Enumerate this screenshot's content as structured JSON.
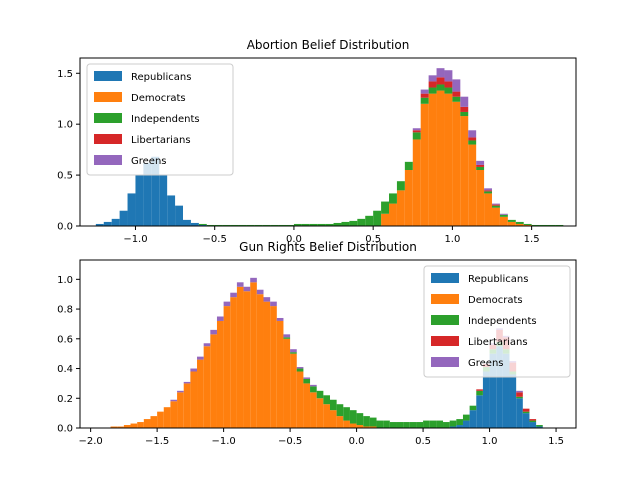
{
  "colors": {
    "Republicans": "#1f77b4",
    "Democrats": "#ff7f0e",
    "Independents": "#2ca02c",
    "Libertarians": "#d62728",
    "Greens": "#9467bd"
  },
  "chart_data": [
    {
      "type": "bar",
      "stacked": true,
      "title": "Abortion Belief Distribution",
      "xlabel": "",
      "ylabel": "",
      "xlim": [
        -1.35,
        1.78
      ],
      "ylim": [
        0,
        1.65
      ],
      "xticks": [
        -1.0,
        -0.5,
        0.0,
        0.5,
        1.0,
        1.5
      ],
      "xtick_labels": [
        "−1.0",
        "−0.5",
        "0.0",
        "0.5",
        "1.0",
        "1.5"
      ],
      "yticks": [
        0,
        0.5,
        1.0,
        1.5
      ],
      "ytick_labels": [
        "0.0",
        "0.5",
        "1.0",
        "1.5"
      ],
      "legend": {
        "position": "top-left",
        "entries": [
          "Republicans",
          "Democrats",
          "Independents",
          "Libertarians",
          "Greens"
        ]
      },
      "bins": {
        "start": -1.25,
        "width": 0.05
      },
      "series": [
        {
          "name": "Republicans",
          "values": [
            0.02,
            0.04,
            0.07,
            0.15,
            0.32,
            0.5,
            0.62,
            0.68,
            0.5,
            0.3,
            0.2,
            0.06,
            0.03,
            0.01,
            0,
            0,
            0,
            0,
            0,
            0,
            0,
            0,
            0,
            0,
            0,
            0,
            0,
            0,
            0,
            0,
            0,
            0,
            0,
            0,
            0,
            0,
            0,
            0,
            0,
            0,
            0,
            0,
            0,
            0,
            0,
            0,
            0,
            0,
            0,
            0,
            0,
            0,
            0,
            0,
            0,
            0,
            0,
            0,
            0
          ]
        },
        {
          "name": "Democrats",
          "values": [
            0,
            0,
            0,
            0,
            0,
            0,
            0,
            0,
            0,
            0,
            0,
            0,
            0,
            0,
            0,
            0,
            0,
            0,
            0,
            0,
            0,
            0,
            0,
            0,
            0,
            0,
            0,
            0,
            0,
            0,
            0,
            0,
            0,
            0,
            0,
            0,
            0.12,
            0.22,
            0.35,
            0.55,
            0.85,
            1.2,
            1.3,
            1.33,
            1.3,
            1.22,
            1.08,
            0.8,
            0.55,
            0.32,
            0.18,
            0.09,
            0.04,
            0.02,
            0.01,
            0,
            0,
            0,
            0
          ]
        },
        {
          "name": "Independents",
          "values": [
            0,
            0,
            0,
            0,
            0,
            0,
            0,
            0,
            0,
            0,
            0,
            0,
            0,
            0.01,
            0.01,
            0.01,
            0.01,
            0.01,
            0.01,
            0.01,
            0.01,
            0.01,
            0.01,
            0.01,
            0.01,
            0.02,
            0.02,
            0.02,
            0.02,
            0.02,
            0.03,
            0.04,
            0.05,
            0.07,
            0.1,
            0.15,
            0.12,
            0.1,
            0.09,
            0.08,
            0.07,
            0.06,
            0.06,
            0.06,
            0.06,
            0.05,
            0.04,
            0.04,
            0.03,
            0.02,
            0.02,
            0.02,
            0.02,
            0.02,
            0.01,
            0.01,
            0.01,
            0.01,
            0.01
          ]
        },
        {
          "name": "Libertarians",
          "values": [
            0,
            0,
            0,
            0,
            0,
            0,
            0,
            0,
            0,
            0,
            0,
            0,
            0,
            0,
            0,
            0,
            0,
            0,
            0,
            0,
            0,
            0,
            0,
            0,
            0,
            0,
            0,
            0,
            0,
            0,
            0,
            0,
            0,
            0,
            0,
            0,
            0,
            0,
            0,
            0,
            0.02,
            0.04,
            0.06,
            0.07,
            0.06,
            0.05,
            0.05,
            0.03,
            0.02,
            0.01,
            0.01,
            0,
            0,
            0,
            0,
            0,
            0,
            0,
            0
          ]
        },
        {
          "name": "Greens",
          "values": [
            0,
            0,
            0,
            0,
            0,
            0,
            0,
            0,
            0,
            0,
            0,
            0,
            0,
            0,
            0,
            0,
            0,
            0,
            0,
            0,
            0,
            0,
            0,
            0,
            0,
            0,
            0,
            0,
            0,
            0,
            0,
            0,
            0,
            0,
            0,
            0,
            0,
            0,
            0,
            0,
            0.02,
            0.04,
            0.06,
            0.09,
            0.11,
            0.12,
            0.1,
            0.07,
            0.04,
            0.02,
            0.01,
            0.01,
            0,
            0,
            0,
            0,
            0,
            0,
            0
          ]
        }
      ]
    },
    {
      "type": "bar",
      "stacked": true,
      "title": "Gun Rights Belief Distribution",
      "xlabel": "",
      "ylabel": "",
      "xlim": [
        -2.08,
        1.65
      ],
      "ylim": [
        0,
        1.13
      ],
      "xticks": [
        -2.0,
        -1.5,
        -1.0,
        -0.5,
        0.0,
        0.5,
        1.0,
        1.5
      ],
      "xtick_labels": [
        "−2.0",
        "−1.5",
        "−1.0",
        "−0.5",
        "0.0",
        "0.5",
        "1.0",
        "1.5"
      ],
      "yticks": [
        0,
        0.2,
        0.4,
        0.6,
        0.8,
        1.0
      ],
      "ytick_labels": [
        "0.0",
        "0.2",
        "0.4",
        "0.6",
        "0.8",
        "1.0"
      ],
      "legend": {
        "position": "top-right",
        "entries": [
          "Republicans",
          "Democrats",
          "Independents",
          "Libertarians",
          "Greens"
        ]
      },
      "bins": {
        "start": -1.85,
        "width": 0.05
      },
      "series": [
        {
          "name": "Republicans",
          "values": [
            0,
            0,
            0,
            0,
            0,
            0,
            0,
            0,
            0,
            0,
            0,
            0,
            0,
            0,
            0,
            0,
            0,
            0,
            0,
            0,
            0,
            0,
            0,
            0,
            0,
            0,
            0,
            0,
            0,
            0,
            0,
            0,
            0,
            0,
            0,
            0,
            0,
            0,
            0,
            0,
            0,
            0,
            0,
            0,
            0,
            0,
            0,
            0,
            0,
            0,
            0,
            0.01,
            0.02,
            0.05,
            0.12,
            0.22,
            0.38,
            0.5,
            0.55,
            0.5,
            0.36,
            0.2,
            0.1,
            0.04,
            0.01,
            0,
            0,
            0,
            0
          ]
        },
        {
          "name": "Democrats",
          "values": [
            0.01,
            0.01,
            0.02,
            0.03,
            0.04,
            0.06,
            0.08,
            0.11,
            0.14,
            0.18,
            0.24,
            0.3,
            0.38,
            0.46,
            0.55,
            0.63,
            0.72,
            0.82,
            0.88,
            0.95,
            0.92,
            0.98,
            0.9,
            0.85,
            0.82,
            0.72,
            0.6,
            0.5,
            0.38,
            0.3,
            0.24,
            0.2,
            0.16,
            0.12,
            0.08,
            0.05,
            0.03,
            0.02,
            0.01,
            0.01,
            0,
            0,
            0,
            0,
            0,
            0,
            0,
            0,
            0,
            0,
            0,
            0,
            0,
            0,
            0,
            0,
            0,
            0,
            0,
            0,
            0,
            0,
            0,
            0,
            0,
            0,
            0,
            0,
            0
          ]
        },
        {
          "name": "Independents",
          "values": [
            0,
            0,
            0,
            0,
            0,
            0,
            0,
            0,
            0,
            0,
            0,
            0,
            0,
            0,
            0,
            0,
            0,
            0,
            0,
            0,
            0,
            0,
            0,
            0,
            0,
            0,
            0.01,
            0.01,
            0.02,
            0.03,
            0.04,
            0.05,
            0.06,
            0.07,
            0.08,
            0.09,
            0.09,
            0.08,
            0.07,
            0.06,
            0.05,
            0.05,
            0.04,
            0.04,
            0.04,
            0.04,
            0.04,
            0.05,
            0.05,
            0.05,
            0.04,
            0.04,
            0.04,
            0.04,
            0.03,
            0.03,
            0.03,
            0.03,
            0.03,
            0.03,
            0.02,
            0.01,
            0.01,
            0.01,
            0.01,
            0,
            0,
            0,
            0
          ]
        },
        {
          "name": "Libertarians",
          "values": [
            0,
            0,
            0,
            0,
            0,
            0,
            0,
            0,
            0,
            0,
            0,
            0,
            0,
            0,
            0,
            0,
            0,
            0,
            0,
            0,
            0,
            0,
            0,
            0,
            0,
            0,
            0,
            0,
            0,
            0,
            0,
            0,
            0,
            0,
            0,
            0,
            0,
            0,
            0,
            0,
            0,
            0,
            0,
            0,
            0,
            0,
            0,
            0,
            0,
            0,
            0,
            0,
            0,
            0,
            0,
            0.01,
            0.02,
            0.03,
            0.08,
            0.08,
            0.06,
            0.03,
            0.02,
            0.01,
            0,
            0,
            0,
            0,
            0
          ]
        },
        {
          "name": "Greens",
          "values": [
            0,
            0,
            0,
            0,
            0,
            0,
            0,
            0,
            0,
            0.01,
            0.01,
            0.01,
            0.02,
            0.02,
            0.02,
            0.03,
            0.03,
            0.03,
            0.03,
            0.03,
            0.03,
            0.03,
            0.03,
            0.03,
            0.03,
            0.02,
            0.02,
            0.02,
            0.01,
            0.01,
            0.01,
            0,
            0,
            0,
            0,
            0,
            0,
            0,
            0,
            0,
            0,
            0,
            0,
            0,
            0,
            0,
            0,
            0,
            0,
            0,
            0,
            0,
            0,
            0,
            0,
            0,
            0,
            0.01,
            0.01,
            0.01,
            0.01,
            0.01,
            0,
            0,
            0,
            0,
            0,
            0,
            0
          ]
        }
      ]
    }
  ]
}
